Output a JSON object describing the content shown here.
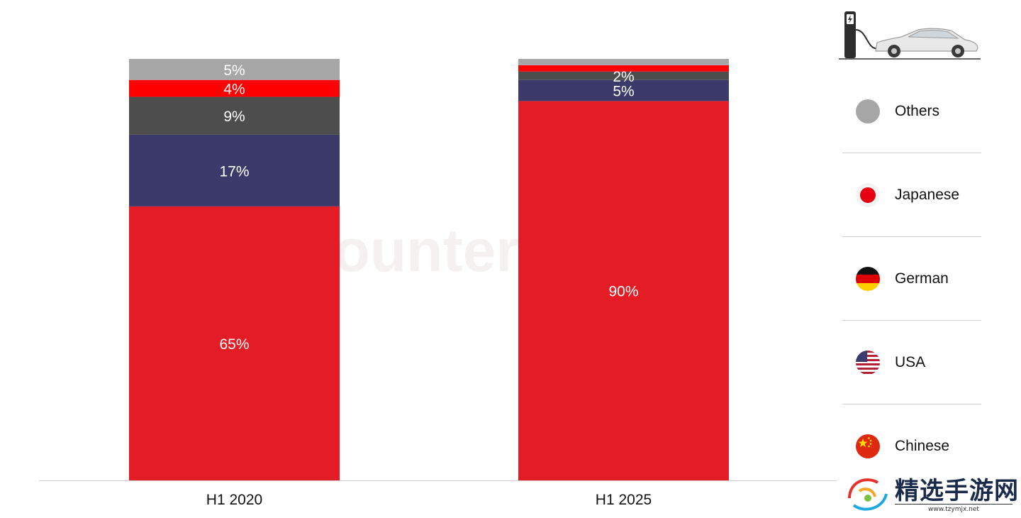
{
  "chart_data": {
    "type": "bar",
    "stacked": true,
    "normalized_percent": true,
    "categories": [
      "H1 2020",
      "H1 2025"
    ],
    "series": [
      {
        "name": "Chinese",
        "color": "#e31c26",
        "values": [
          65,
          90
        ]
      },
      {
        "name": "USA",
        "color": "#3b3a6b",
        "values": [
          17,
          5
        ]
      },
      {
        "name": "German",
        "color": "#4d4d4d",
        "values": [
          9,
          2
        ]
      },
      {
        "name": "Japanese",
        "color": "#ff0000",
        "values": [
          4,
          1.5
        ]
      },
      {
        "name": "Others",
        "color": "#a6a6a6",
        "values": [
          5,
          1.5
        ]
      }
    ],
    "data_labels": [
      [
        "65%",
        "17%",
        "9%",
        "4%",
        "5%"
      ],
      [
        "90%",
        "5%",
        "2%",
        "",
        ""
      ]
    ],
    "ylim": [
      0,
      100
    ],
    "legend_position": "right",
    "grid": false
  },
  "watermark": "Counterpoint",
  "legend": {
    "items": [
      {
        "label": "Others",
        "icon": "grey-circle-icon"
      },
      {
        "label": "Japanese",
        "icon": "japan-flag-icon"
      },
      {
        "label": "German",
        "icon": "germany-flag-icon"
      },
      {
        "label": "USA",
        "icon": "usa-flag-icon"
      },
      {
        "label": "Chinese",
        "icon": "china-flag-icon"
      }
    ],
    "header_icon": "ev-charging-car-icon"
  },
  "site_badge": {
    "name": "精选手游网",
    "url": "www.tzymjx.net"
  }
}
